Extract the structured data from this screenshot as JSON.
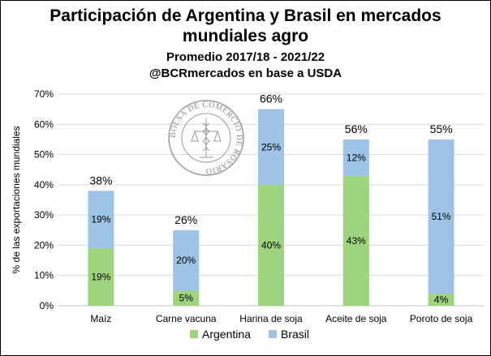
{
  "title_lines": [
    "Participación de Argentina y Brasil en mercados",
    "mundiales agro",
    "Promedio 2017/18 - 2021/22",
    "@BCRmercados en base a USDA"
  ],
  "seal": {
    "text": "BOLSA DE COMERCIO DE ROSARIO"
  },
  "colors": {
    "argentina": "#9fd47f",
    "brasil": "#9dc3e6",
    "grid": "#d9d9d9",
    "text": "#000000"
  },
  "chart_data": {
    "type": "bar",
    "stacked": true,
    "categories": [
      "Maíz",
      "Carne vacuna",
      "Harina de soja",
      "Aceite de soja",
      "Poroto de soja"
    ],
    "series": [
      {
        "name": "Argentina",
        "values": [
          19,
          5,
          40,
          43,
          4
        ],
        "labels": [
          "19%",
          "5%",
          "40%",
          "43%",
          "4%"
        ]
      },
      {
        "name": "Brasil",
        "values": [
          19,
          20,
          25,
          12,
          51
        ],
        "labels": [
          "19%",
          "20%",
          "25%",
          "12%",
          "51%"
        ]
      }
    ],
    "totals": [
      38,
      26,
      66,
      56,
      55
    ],
    "total_labels": [
      "38%",
      "26%",
      "66%",
      "56%",
      "55%"
    ],
    "ylabel": "% de las exportaciones mundiales",
    "ylim": [
      0,
      70
    ],
    "yticks": [
      0,
      10,
      20,
      30,
      40,
      50,
      60,
      70
    ],
    "ytick_labels": [
      "0%",
      "10%",
      "20%",
      "30%",
      "40%",
      "50%",
      "60%",
      "70%"
    ],
    "grid": true,
    "legend_position": "bottom"
  }
}
